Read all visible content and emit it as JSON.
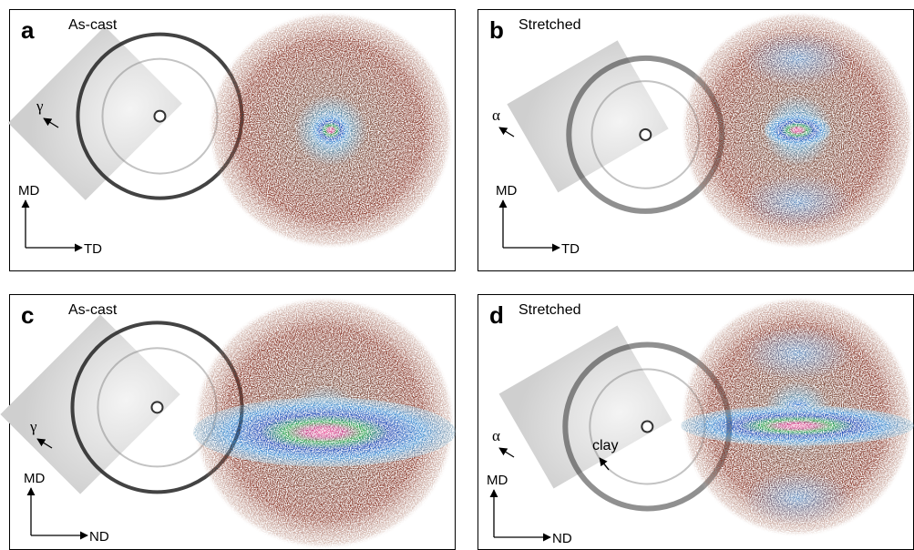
{
  "panels": [
    {
      "letter": "a",
      "condition": "As-cast",
      "arrow_label": "γ",
      "vertical_axis": "MD",
      "horizontal_axis": "TD"
    },
    {
      "letter": "b",
      "condition": "Stretched",
      "arrow_label": "α",
      "vertical_axis": "MD",
      "horizontal_axis": "TD"
    },
    {
      "letter": "c",
      "condition": "As-cast",
      "arrow_label": "γ",
      "vertical_axis": "MD",
      "horizontal_axis": "ND"
    },
    {
      "letter": "d",
      "condition": "Stretched",
      "arrow_label": "α",
      "extra_label": "clay",
      "vertical_axis": "MD",
      "horizontal_axis": "ND"
    }
  ]
}
